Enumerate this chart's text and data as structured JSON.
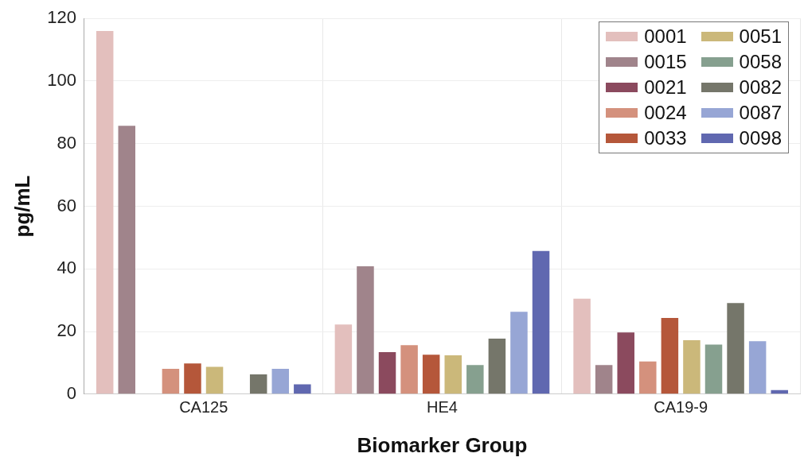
{
  "chart_data": {
    "type": "bar",
    "xlabel": "Biomarker Group",
    "ylabel": "pg/mL",
    "categories": [
      "CA125",
      "HE4",
      "CA19-9"
    ],
    "series": [
      {
        "name": "0001",
        "color": "#e3bfbd",
        "values": [
          116,
          22.2,
          30.5
        ]
      },
      {
        "name": "0015",
        "color": "#a0848b",
        "values": [
          85.7,
          40.8,
          9.3
        ]
      },
      {
        "name": "0021",
        "color": "#8b4a5e",
        "values": [
          null,
          13.4,
          19.7
        ]
      },
      {
        "name": "0024",
        "color": "#d4917d",
        "values": [
          8.1,
          15.6,
          10.4
        ]
      },
      {
        "name": "0033",
        "color": "#b5573a",
        "values": [
          9.8,
          12.6,
          24.3
        ]
      },
      {
        "name": "0051",
        "color": "#cbb87a",
        "values": [
          8.7,
          12.4,
          17.2
        ]
      },
      {
        "name": "0058",
        "color": "#86a08f",
        "values": [
          null,
          9.3,
          15.8
        ]
      },
      {
        "name": "0082",
        "color": "#75766a",
        "values": [
          6.3,
          17.7,
          29.1
        ]
      },
      {
        "name": "0087",
        "color": "#97a6d5",
        "values": [
          8.1,
          26.3,
          16.9
        ]
      },
      {
        "name": "0098",
        "color": "#6068b0",
        "values": [
          3.1,
          45.7,
          1.3
        ]
      }
    ],
    "ylim": [
      0,
      120
    ],
    "yticks": [
      0,
      20,
      40,
      60,
      80,
      100,
      120
    ],
    "grid": true,
    "legend": "top right"
  }
}
